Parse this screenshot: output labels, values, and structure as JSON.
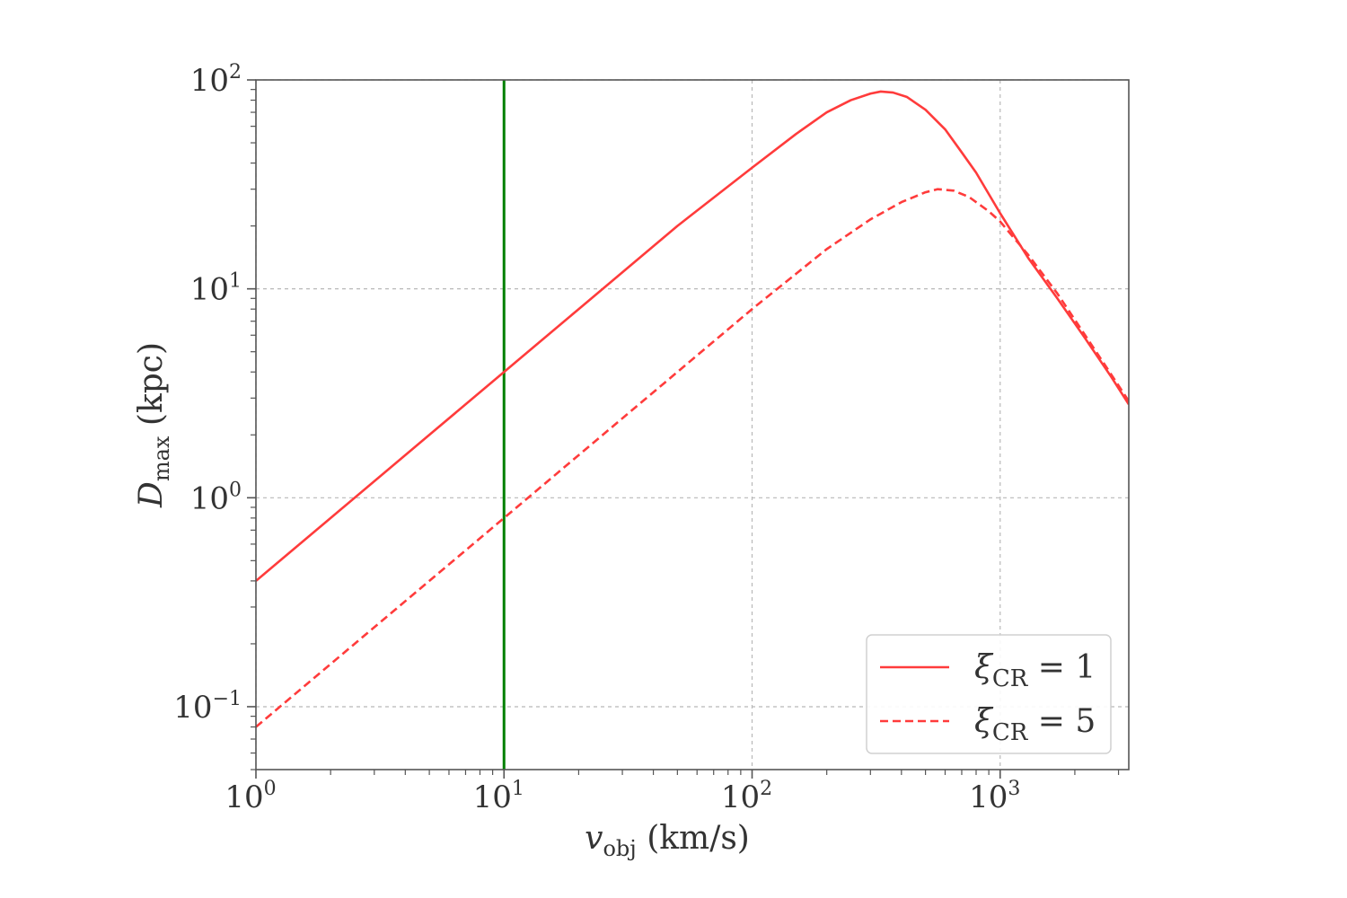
{
  "chart_data": {
    "type": "line",
    "xscale": "log",
    "yscale": "log",
    "xlim": [
      1,
      3300
    ],
    "ylim": [
      0.05,
      100
    ],
    "grid": true,
    "legend_position": "bottom-right",
    "xlabel": {
      "symbol": "v",
      "subscript": "obj",
      "unit": "(km/s)"
    },
    "ylabel": {
      "symbol": "D",
      "subscript": "max",
      "unit": "(kpc)"
    },
    "x_ticks": [
      {
        "value": 1,
        "base": "10",
        "exp": "0"
      },
      {
        "value": 10,
        "base": "10",
        "exp": "1"
      },
      {
        "value": 100,
        "base": "10",
        "exp": "2"
      },
      {
        "value": 1000,
        "base": "10",
        "exp": "3"
      }
    ],
    "y_ticks": [
      {
        "value": 0.1,
        "base": "10",
        "exp": "−1"
      },
      {
        "value": 1,
        "base": "10",
        "exp": "0"
      },
      {
        "value": 10,
        "base": "10",
        "exp": "1"
      },
      {
        "value": 100,
        "base": "10",
        "exp": "2"
      }
    ],
    "vertical_line": {
      "x": 10,
      "color": "#008000"
    },
    "series": [
      {
        "symbol": "ξ",
        "subscript": "CR",
        "eq": " = 1",
        "style": "solid",
        "color": "#ff3b3b",
        "points": [
          [
            1,
            0.4
          ],
          [
            2,
            0.8
          ],
          [
            5,
            2.0
          ],
          [
            10,
            4.0
          ],
          [
            20,
            8.0
          ],
          [
            50,
            20.0
          ],
          [
            100,
            38.0
          ],
          [
            150,
            55.0
          ],
          [
            200,
            70.0
          ],
          [
            250,
            80.0
          ],
          [
            300,
            86.0
          ],
          [
            330,
            88.0
          ],
          [
            370,
            87.0
          ],
          [
            420,
            83.0
          ],
          [
            500,
            72.0
          ],
          [
            600,
            58.0
          ],
          [
            700,
            45.0
          ],
          [
            800,
            36.0
          ],
          [
            1000,
            23.0
          ],
          [
            1300,
            14.0
          ],
          [
            1700,
            9.0
          ],
          [
            2200,
            5.8
          ],
          [
            2800,
            3.8
          ],
          [
            3300,
            2.8
          ]
        ]
      },
      {
        "symbol": "ξ",
        "subscript": "CR",
        "eq": " = 5",
        "style": "dashed",
        "color": "#ff3b3b",
        "points": [
          [
            1,
            0.08
          ],
          [
            2,
            0.16
          ],
          [
            5,
            0.4
          ],
          [
            10,
            0.8
          ],
          [
            20,
            1.6
          ],
          [
            50,
            4.0
          ],
          [
            100,
            8.0
          ],
          [
            200,
            15.5
          ],
          [
            300,
            21.5
          ],
          [
            400,
            26.0
          ],
          [
            500,
            29.0
          ],
          [
            560,
            30.0
          ],
          [
            650,
            29.5
          ],
          [
            750,
            27.5
          ],
          [
            900,
            23.5
          ],
          [
            1000,
            21.0
          ],
          [
            1300,
            14.5
          ],
          [
            1700,
            9.5
          ],
          [
            2200,
            6.0
          ],
          [
            2800,
            3.9
          ],
          [
            3300,
            2.9
          ]
        ]
      }
    ]
  }
}
